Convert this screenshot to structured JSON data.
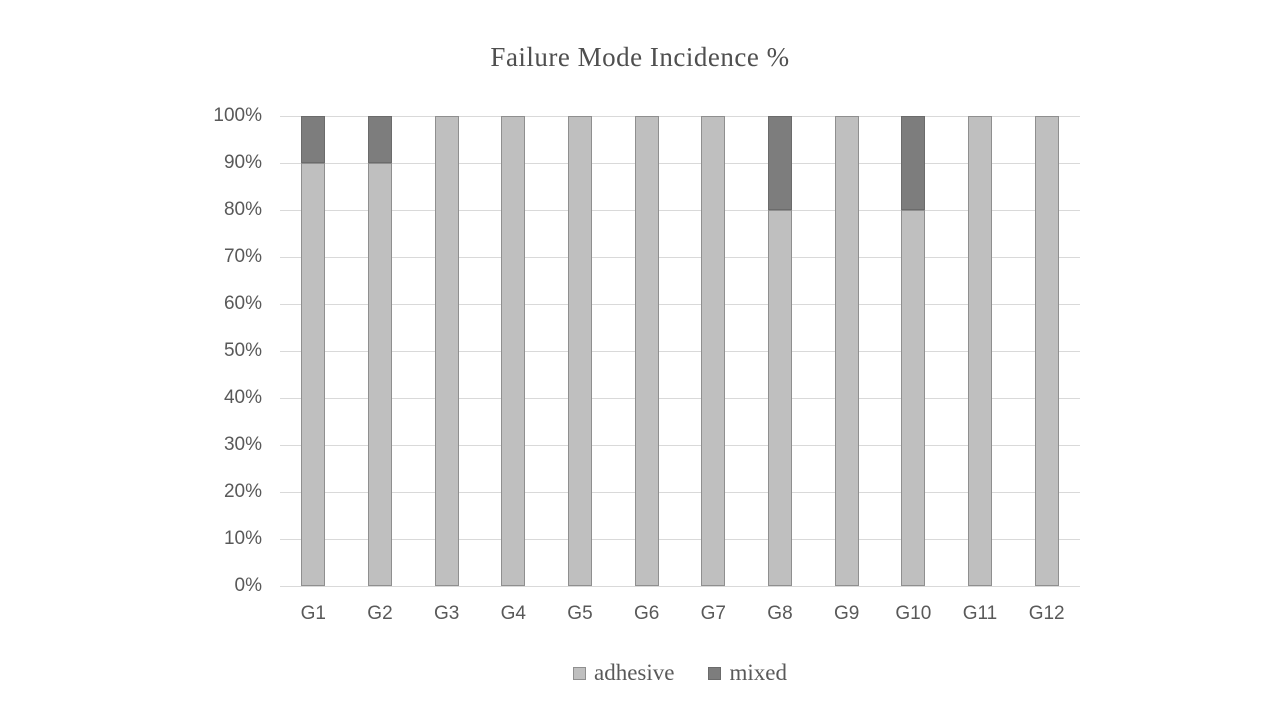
{
  "title": "Failure Mode Incidence %",
  "chart_data": {
    "type": "bar",
    "subtype": "stacked-100",
    "title": "Failure Mode Incidence %",
    "categories": [
      "G1",
      "G2",
      "G3",
      "G4",
      "G5",
      "G6",
      "G7",
      "G8",
      "G9",
      "G10",
      "G11",
      "G12"
    ],
    "series": [
      {
        "name": "adhesive",
        "color": "#bfbfbf",
        "border_color": "#8f8f8f",
        "values": [
          90,
          90,
          100,
          100,
          100,
          100,
          100,
          80,
          100,
          80,
          100,
          100
        ]
      },
      {
        "name": "mixed",
        "color": "#7d7d7d",
        "border_color": "#6b6b6b",
        "values": [
          10,
          10,
          0,
          0,
          0,
          0,
          0,
          20,
          0,
          20,
          0,
          0
        ]
      }
    ],
    "xlabel": "",
    "ylabel": "",
    "ylim": [
      0,
      100
    ],
    "y_ticks": [
      "0%",
      "10%",
      "20%",
      "30%",
      "40%",
      "50%",
      "60%",
      "70%",
      "80%",
      "90%",
      "100%"
    ],
    "grid": true,
    "gridline_color": "#d9d9d9",
    "axis_text_color": "#595959",
    "title_color": "#4f4f4f",
    "legend_position": "bottom"
  }
}
